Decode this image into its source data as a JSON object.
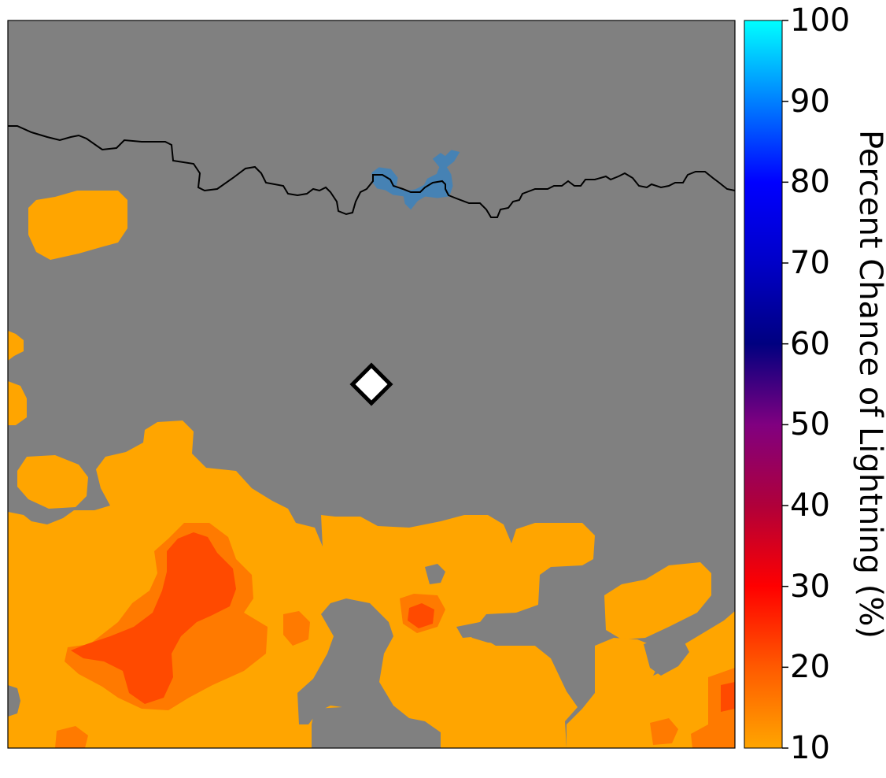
{
  "map": {
    "background_color": "#808080",
    "forecast_fill_colors": {
      "low": "#FFA500",
      "moderate": "#FF8000",
      "high": "#FF4500"
    },
    "water_color": "#4682B4",
    "marker": {
      "shape": "diamond",
      "fill": "#ffffff",
      "stroke": "#000000"
    }
  },
  "colorbar": {
    "title": "Percent Chance of Lightning (%)",
    "ticks": [
      "10",
      "20",
      "30",
      "40",
      "50",
      "60",
      "70",
      "80",
      "90",
      "100"
    ],
    "range": [
      10,
      100
    ],
    "stops": [
      {
        "value": 10,
        "color": "#FFA500"
      },
      {
        "value": 20,
        "color": "#FF5A00"
      },
      {
        "value": 30,
        "color": "#FF0000"
      },
      {
        "value": 40,
        "color": "#B0003A"
      },
      {
        "value": 50,
        "color": "#800080"
      },
      {
        "value": 60,
        "color": "#000080"
      },
      {
        "value": 70,
        "color": "#0000C8"
      },
      {
        "value": 80,
        "color": "#0000FF"
      },
      {
        "value": 90,
        "color": "#0080FF"
      },
      {
        "value": 100,
        "color": "#00FFFF"
      }
    ]
  }
}
